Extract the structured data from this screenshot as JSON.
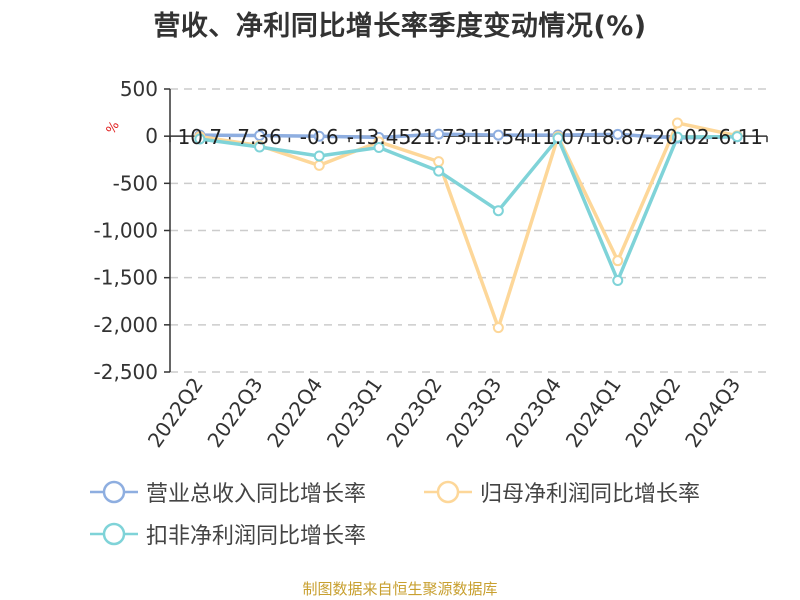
{
  "title": "营收、净利同比增长率季度变动情况(%)",
  "source": "制图数据来自恒生聚源数据库",
  "y_unit_label": "%",
  "colors": {
    "revenue": "#8eaee0",
    "net_profit": "#fdd799",
    "deducted_net_profit": "#7fd3d8",
    "unit_label": "#e02020",
    "source": "#c8a030"
  },
  "legend": [
    {
      "name": "营业总收入同比增长率",
      "color": "#8eaee0"
    },
    {
      "name": "归母净利润同比增长率",
      "color": "#fdd799"
    },
    {
      "name": "扣非净利润同比增长率",
      "color": "#7fd3d8"
    }
  ],
  "chart_data": {
    "type": "line",
    "title": "营收、净利同比增长率季度变动情况(%)",
    "xlabel": "",
    "ylabel": "%",
    "categories": [
      "2022Q2",
      "2022Q3",
      "2022Q4",
      "2023Q1",
      "2023Q2",
      "2023Q3",
      "2023Q4",
      "2024Q1",
      "2024Q2",
      "2024Q3"
    ],
    "y_ticks": [
      500,
      0,
      -500,
      -1000,
      -1500,
      -2000,
      -2500
    ],
    "y_tick_labels": [
      "500",
      "0",
      "-500",
      "-1,000",
      "-1,500",
      "-2,000",
      "-2,500"
    ],
    "ylim": [
      -2500,
      500
    ],
    "grid": "horizontal dashed",
    "legend_position": "bottom",
    "series": [
      {
        "name": "营业总收入同比增长率",
        "values": [
          10.7,
          7.36,
          -0.6,
          -13.45,
          21.73,
          11.54,
          11.07,
          18.87,
          -20.02,
          -6.11
        ],
        "data_labels": [
          "10.7",
          "7.36",
          "-0.6",
          "-13.45",
          "21.73",
          "11.54",
          "11.07",
          "18.87",
          "-20.02",
          "-6.11"
        ]
      },
      {
        "name": "归母净利润同比增长率",
        "values": [
          -5,
          -100,
          -310,
          -60,
          -270,
          -2030,
          -5,
          -1320,
          140,
          5
        ]
      },
      {
        "name": "扣非净利润同比增长率",
        "values": [
          -30,
          -115,
          -210,
          -120,
          -370,
          -790,
          -20,
          -1530,
          -10,
          -5
        ]
      }
    ]
  }
}
